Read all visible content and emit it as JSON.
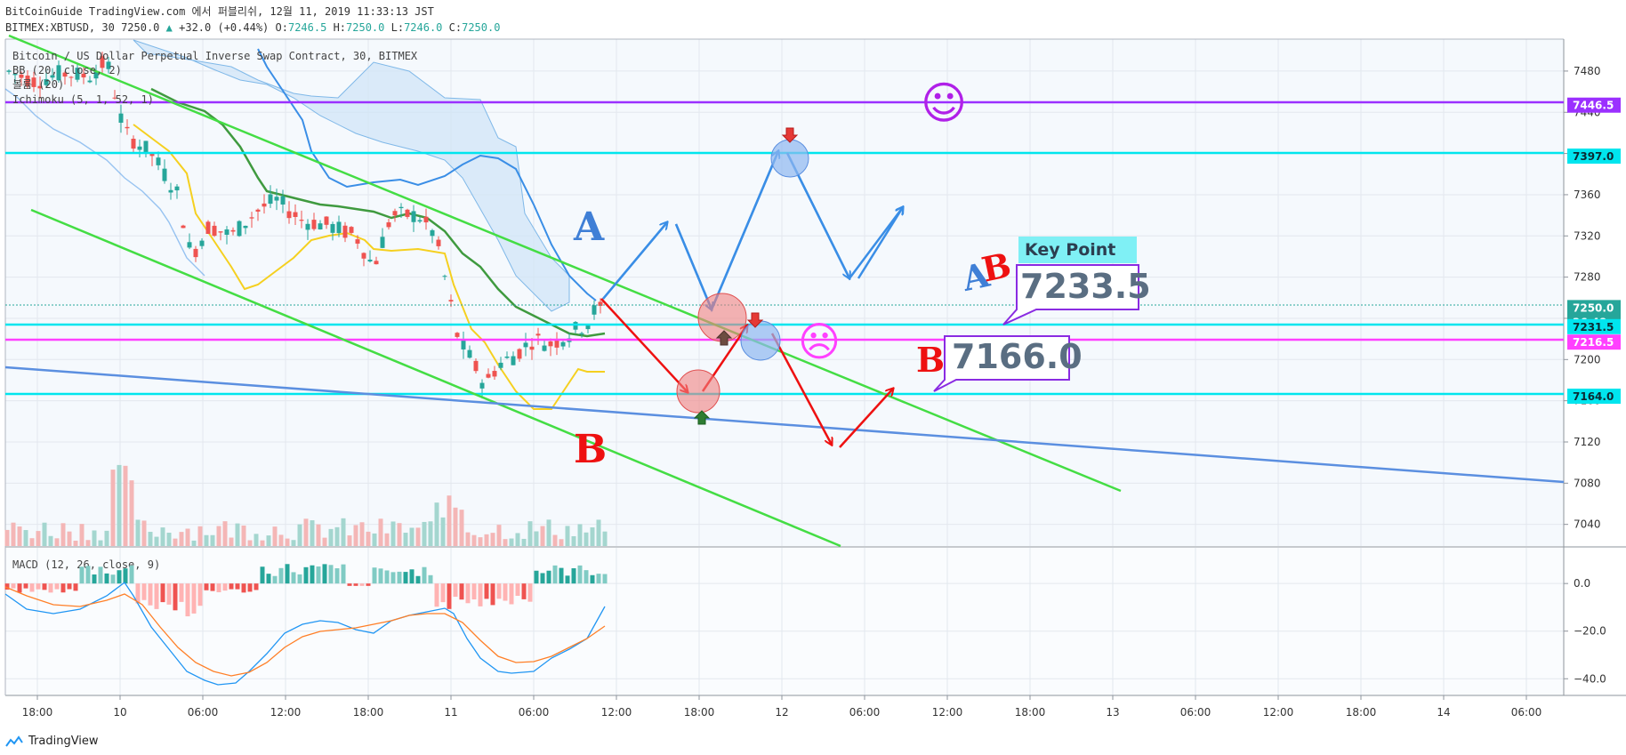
{
  "header": {
    "line1": "BitCoinGuide TradingView.com 에서 퍼블리쉬, 12월 11, 2019 11:33:13 JST",
    "symbol": "BITMEX:XBTUSD, 30",
    "last": "7250.0",
    "arrow": "▲",
    "change": "+32.0 (+0.44%)",
    "o_label": "O:",
    "o": "7246.5",
    "h_label": "H:",
    "h": "7250.0",
    "l_label": "L:",
    "l": "7246.0",
    "c_label": "C:",
    "c": "7250.0"
  },
  "legend": {
    "line1": "Bitcoin / US Dollar Perpetual Inverse Swap Contract, 30, BITMEX",
    "line2": "BB (20, close, 2)",
    "line3": "볼륨 (20)",
    "line4": "Ichimoku (5, 1, 52, 1)",
    "macd": "MACD (12, 26, close, 9)"
  },
  "footer": {
    "brand": "TradingView"
  },
  "colors": {
    "up": "#26a69a",
    "down": "#ef5350",
    "purple": "#9b30ff",
    "cyan": "#00e5ee",
    "magenta": "#ff40ff",
    "green_channel": "#44dd44",
    "blue_trend": "#5b8fe0",
    "bb_blue": "#3a8ee6",
    "tenkan": "#ffd700",
    "kijun": "#3f9a3f"
  },
  "annotations": {
    "letter_a": "A",
    "letter_b": "B",
    "letter_ab_a": "A",
    "letter_ab_b": "B",
    "letter_b2": "B",
    "key_point": "Key Point",
    "ab_price": "7233.5",
    "b_price": "7166.0",
    "smiley": "☺",
    "frown": "☹"
  },
  "chart_data": [
    {
      "type": "line",
      "title": "",
      "y_axis": {
        "ticks": [
          7480,
          7440,
          7400,
          7360,
          7320,
          7280,
          7240,
          7200,
          7160,
          7120,
          7080,
          7040
        ],
        "range": [
          7019,
          7511
        ]
      },
      "x_axis": {
        "ticks": [
          "18:00",
          "10",
          "06:00",
          "12:00",
          "18:00",
          "11",
          "06:00",
          "12:00",
          "18:00",
          "12",
          "06:00",
          "12:00",
          "18:00",
          "13",
          "06:00",
          "12:00",
          "18:00",
          "14",
          "06:00"
        ]
      },
      "price_tags": [
        {
          "value": 7446.5,
          "label": "7446.5",
          "color": "#9b30ff"
        },
        {
          "value": 7397.0,
          "label": "7397.0",
          "color": "#00e5ee"
        },
        {
          "value": 7250.0,
          "label": "7250.0",
          "color": "#26a69a"
        },
        {
          "value": 7236.0,
          "label": "26:48",
          "color": "#26a69a"
        },
        {
          "value": 7231.5,
          "label": "7231.5",
          "color": "#00e5ee"
        },
        {
          "value": 7216.5,
          "label": "7216.5",
          "color": "#ff40ff"
        },
        {
          "value": 7164.0,
          "label": "7164.0",
          "color": "#00e5ee"
        }
      ],
      "horizontal_levels": [
        {
          "value": 7446.5,
          "color": "#9b30ff"
        },
        {
          "value": 7397.0,
          "color": "#00e5ee"
        },
        {
          "value": 7231.5,
          "color": "#00e5ee"
        },
        {
          "value": 7216.5,
          "color": "#ff40ff"
        },
        {
          "value": 7164.0,
          "color": "#00e5ee"
        }
      ]
    },
    {
      "type": "bar",
      "title": "MACD (12, 26, close, 9)",
      "y_axis": {
        "ticks": [
          {
            "value": 0,
            "label": "0.0"
          },
          {
            "value": -20,
            "label": "−20.0"
          },
          {
            "value": -40,
            "label": "−40.0"
          }
        ],
        "range": [
          -47,
          15
        ]
      },
      "x_axis": {
        "ticks": [
          "18:00",
          "10",
          "06:00",
          "12:00",
          "18:00",
          "11",
          "06:00",
          "12:00",
          "18:00",
          "12",
          "06:00",
          "12:00",
          "18:00",
          "13",
          "06:00",
          "12:00",
          "18:00",
          "14",
          "06:00"
        ]
      }
    }
  ]
}
